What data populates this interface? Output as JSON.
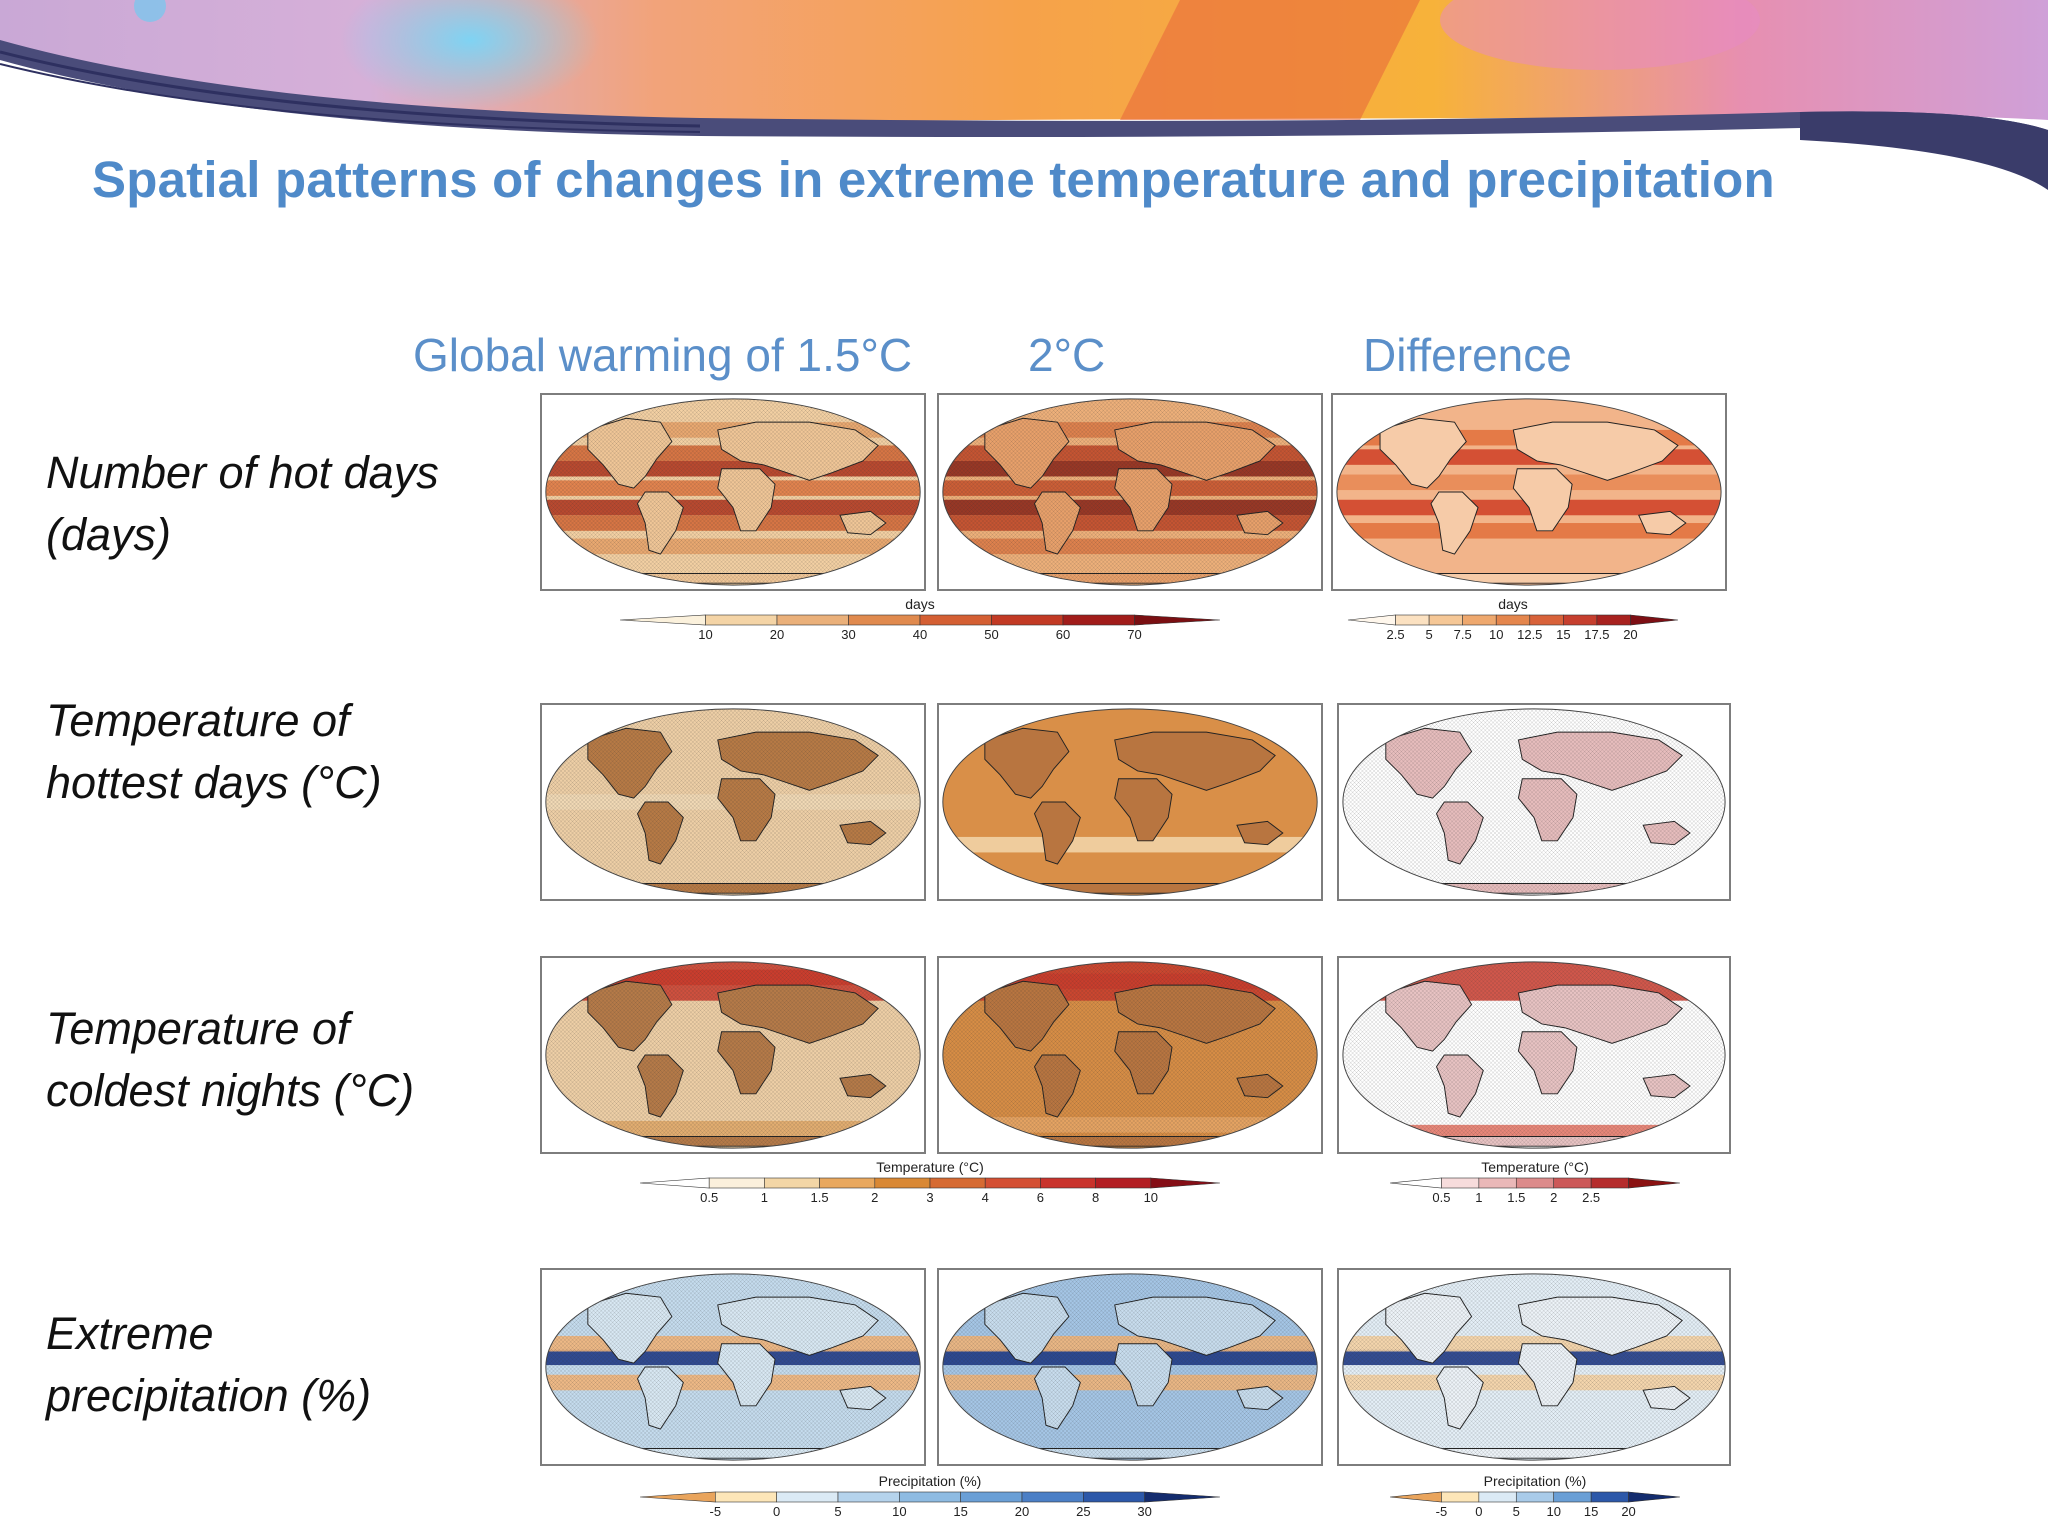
{
  "slide": {
    "title": "Spatial patterns of changes in extreme temperature and precipitation"
  },
  "columns": [
    {
      "label": "Global warming of 1.5°C"
    },
    {
      "label": "2°C"
    },
    {
      "label": "Difference"
    }
  ],
  "rows": [
    {
      "label_line1": "Number of hot days",
      "label_line2": "(days)"
    },
    {
      "label_line1": "Temperature of",
      "label_line2": "hottest days (°C)"
    },
    {
      "label_line1": "Temperature of",
      "label_line2": "coldest nights (°C)"
    },
    {
      "label_line1": "Extreme",
      "label_line2": "precipitation (%)"
    }
  ],
  "colorbars": {
    "hot_days_main": {
      "title": "days",
      "ticks": [
        "10",
        "20",
        "30",
        "40",
        "50",
        "60",
        "70"
      ],
      "colors": [
        "#fbf1dc",
        "#f4d4a6",
        "#eab07a",
        "#e08a4e",
        "#d45f33",
        "#c23a24",
        "#a11c1a",
        "#7a0f12"
      ]
    },
    "hot_days_diff": {
      "title": "days",
      "ticks": [
        "2.5",
        "5",
        "7.5",
        "10",
        "12.5",
        "15",
        "17.5",
        "20"
      ],
      "colors": [
        "#fff7ec",
        "#fbe1c1",
        "#f5c796",
        "#eea86e",
        "#e4864d",
        "#d8623a",
        "#c63f2e",
        "#a8221f",
        "#7d0f14"
      ]
    },
    "temp_main": {
      "title": "Temperature (°C)",
      "ticks": [
        "0.5",
        "1",
        "1.5",
        "2",
        "3",
        "4",
        "6",
        "8",
        "10"
      ],
      "colors": [
        "#ffffff",
        "#fbf0dc",
        "#f3d6a6",
        "#e9a85e",
        "#d98834",
        "#d66a32",
        "#d44f33",
        "#c9332c",
        "#b31e23",
        "#850e16"
      ]
    },
    "temp_diff": {
      "title": "Temperature (°C)",
      "ticks": [
        "0.5",
        "1",
        "1.5",
        "2",
        "2.5"
      ],
      "colors": [
        "#ffffff",
        "#f7dcdc",
        "#eab8b8",
        "#dc8b8b",
        "#cc5858",
        "#b52c2c",
        "#8a1111"
      ]
    },
    "precip_main": {
      "title": "Precipitation (%)",
      "ticks": [
        "-5",
        "0",
        "5",
        "10",
        "15",
        "20",
        "25",
        "30"
      ],
      "colors": [
        "#e9a45c",
        "#fde6b8",
        "#dbeaf5",
        "#b5d3ec",
        "#8ebbe2",
        "#6a9fd6",
        "#4b7fc6",
        "#2c58a9",
        "#142c6e"
      ]
    },
    "precip_diff": {
      "title": "Precipitation (%)",
      "ticks": [
        "-5",
        "0",
        "5",
        "10",
        "15",
        "20"
      ],
      "colors": [
        "#e9a45c",
        "#fde6b8",
        "#dbeaf5",
        "#a9cbe9",
        "#6a9fd6",
        "#2c58a9",
        "#142c6e"
      ]
    }
  },
  "palette": {
    "title_blue": "#4f8ac9",
    "header_blue": "#5b8fc9"
  }
}
